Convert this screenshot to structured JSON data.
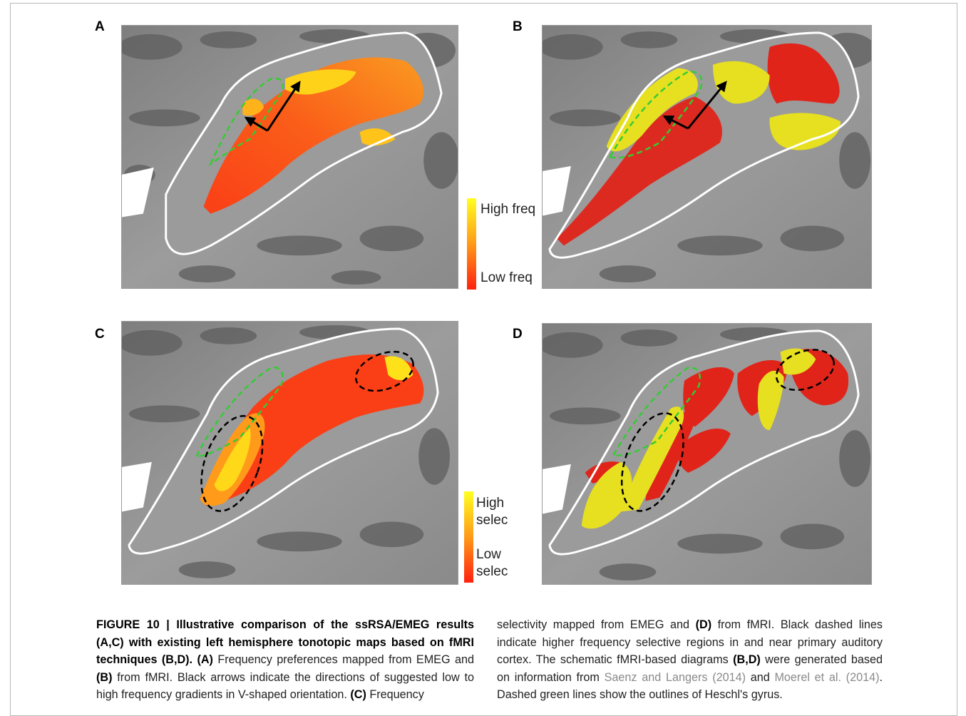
{
  "panels": {
    "A": "A",
    "B": "B",
    "C": "C",
    "D": "D"
  },
  "legend_top": {
    "high": "High freq",
    "low": "Low freq",
    "colors": [
      "#ffff22",
      "#ff2010"
    ]
  },
  "legend_bottom": {
    "high1": "High",
    "high2": "selec",
    "low1": "Low",
    "low2": "selec",
    "colors": [
      "#ffff22",
      "#ff2010"
    ]
  },
  "caption": {
    "figure_label": "FIGURE 10 | Illustrative comparison of the ssRSA/EMEG results (A,C) with existing left hemisphere tonotopic maps based on fMRI techniques (B,D).",
    "seg1_bold": "(A)",
    "seg1_text": " Frequency preferences mapped from EMEG and ",
    "seg2_bold": "(B)",
    "seg2_text": " from fMRI. Black arrows indicate the directions of suggested low to high frequency gradients in V-shaped orientation. ",
    "seg3_bold": "(C)",
    "seg3_text": " Frequency",
    "col2_text1": "selectivity mapped from EMEG and ",
    "seg4_bold": "(D)",
    "col2_text2": " from fMRI. Black dashed lines indicate higher frequency selective regions in and near primary auditory cortex. The schematic fMRI-based diagrams ",
    "seg5_bold": "(B,D)",
    "col2_text3": " were generated based on information from ",
    "ref1": "Saenz and Langers (2014)",
    "col2_text4": " and ",
    "ref2": "Moerel et al. (2014)",
    "col2_text5": ". Dashed green lines show the outlines of Heschl's gyrus."
  }
}
